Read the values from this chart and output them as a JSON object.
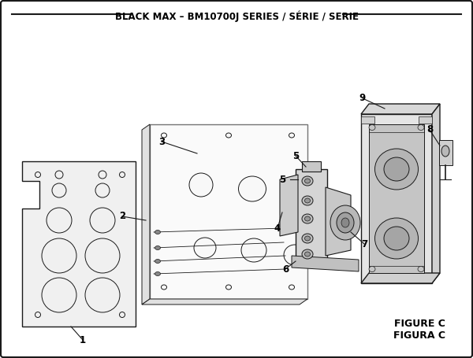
{
  "title": "BLACK MAX – BM10700J SERIES / SÉRIE / SERIE",
  "title_fontsize": 8.5,
  "figure_c_text": "FIGURE C",
  "figura_c_text": "FIGURA C",
  "bg_color": "#ffffff",
  "border_color": "#000000",
  "lc": "#1a1a1a",
  "fill_light": "#e8e8e8",
  "fill_mid": "#d0d0d0",
  "fill_dark": "#b0b0b0"
}
